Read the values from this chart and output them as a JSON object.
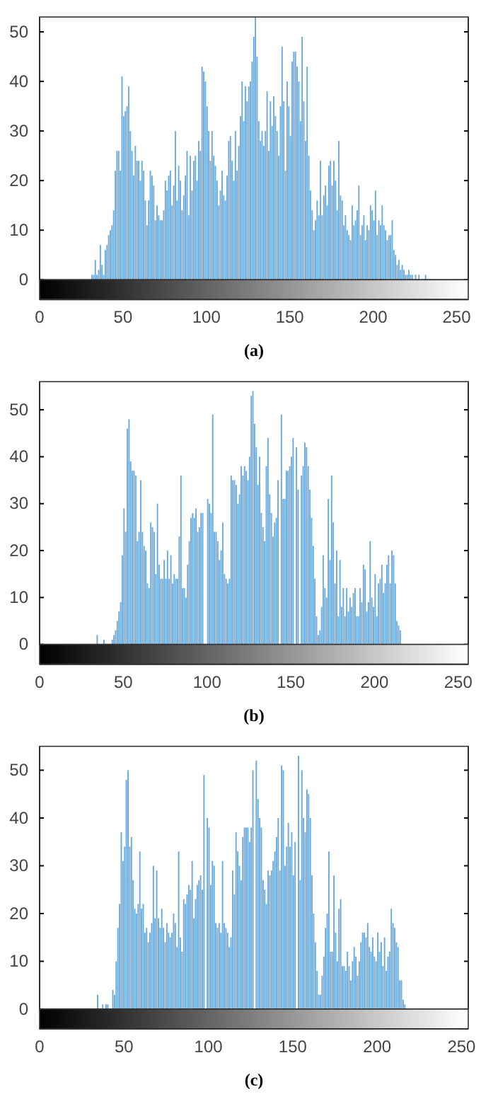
{
  "chart_data": [
    {
      "type": "histogram",
      "title": "(a)",
      "color": "#4d9ad6",
      "xlim": [
        0,
        257
      ],
      "xticks": [
        0,
        50,
        100,
        150,
        200,
        250
      ],
      "ylim": [
        0,
        53
      ],
      "yticks": [
        0,
        10,
        20,
        30,
        40,
        50
      ],
      "bins": [
        30,
        31,
        32,
        33,
        34,
        35,
        36,
        37,
        38,
        39,
        40,
        41,
        42,
        43,
        44,
        45,
        46,
        47,
        48,
        49,
        50,
        51,
        52,
        53,
        54,
        55,
        56,
        57,
        58,
        59,
        60,
        61,
        62,
        63,
        64,
        65,
        66,
        67,
        68,
        69,
        70,
        71,
        72,
        73,
        74,
        75,
        76,
        77,
        78,
        79,
        80,
        81,
        82,
        83,
        84,
        85,
        86,
        87,
        88,
        89,
        90,
        91,
        92,
        93,
        94,
        95,
        96,
        97,
        98,
        99,
        100,
        101,
        102,
        103,
        104,
        105,
        106,
        107,
        108,
        109,
        110,
        111,
        112,
        113,
        114,
        115,
        116,
        117,
        118,
        119,
        120,
        121,
        122,
        123,
        124,
        125,
        126,
        127,
        128,
        129,
        130,
        131,
        132,
        133,
        134,
        135,
        136,
        137,
        138,
        139,
        140,
        141,
        142,
        143,
        144,
        145,
        146,
        147,
        148,
        149,
        150,
        151,
        152,
        153,
        154,
        155,
        156,
        157,
        158,
        159,
        160,
        161,
        162,
        163,
        164,
        165,
        166,
        167,
        168,
        169,
        170,
        171,
        172,
        173,
        174,
        175,
        176,
        177,
        178,
        179,
        180,
        181,
        182,
        183,
        184,
        185,
        186,
        187,
        188,
        189,
        190,
        191,
        192,
        193,
        194,
        195,
        196,
        197,
        198,
        199,
        200,
        201,
        202,
        203,
        204,
        205,
        206,
        207,
        208,
        209,
        210,
        211,
        212,
        213,
        214,
        215,
        216,
        217,
        218,
        219,
        220,
        221,
        222,
        223,
        224,
        225,
        226,
        227,
        228,
        229,
        230,
        231,
        232,
        233,
        234
      ],
      "values": [
        0,
        1,
        1,
        4,
        1,
        2,
        7,
        3,
        1,
        6,
        7,
        9,
        10,
        11,
        14,
        22,
        26,
        26,
        22,
        41,
        33,
        34,
        35,
        39,
        30,
        26,
        21,
        27,
        24,
        24,
        20,
        24,
        22,
        16,
        11,
        16,
        22,
        21,
        19,
        12,
        15,
        13,
        12,
        12,
        14,
        20,
        18,
        21,
        22,
        15,
        19,
        30,
        16,
        23,
        20,
        14,
        17,
        21,
        26,
        13,
        25,
        18,
        24,
        25,
        20,
        28,
        26,
        43,
        42,
        40,
        35,
        30,
        24,
        30,
        25,
        23,
        20,
        15,
        18,
        22,
        17,
        16,
        21,
        28,
        29,
        24,
        20,
        30,
        22,
        27,
        33,
        40,
        32,
        39,
        36,
        39,
        40,
        44,
        49,
        53,
        45,
        32,
        28,
        30,
        27,
        30,
        38,
        26,
        36,
        31,
        37,
        33,
        30,
        25,
        35,
        47,
        36,
        22,
        40,
        35,
        29,
        44,
        46,
        46,
        43,
        40,
        32,
        49,
        36,
        28,
        43,
        25,
        18,
        14,
        10,
        12,
        16,
        13,
        24,
        13,
        17,
        19,
        15,
        23,
        24,
        19,
        24,
        20,
        14,
        28,
        17,
        16,
        11,
        13,
        10,
        9,
        8,
        15,
        11,
        12,
        14,
        19,
        9,
        11,
        13,
        8,
        11,
        10,
        15,
        14,
        12,
        18,
        9,
        12,
        11,
        15,
        11,
        10,
        8,
        9,
        9,
        12,
        6,
        5,
        3,
        4,
        2,
        3,
        2,
        1,
        1,
        2,
        1,
        1,
        0,
        1,
        0,
        1,
        0,
        0,
        0,
        1,
        0,
        0
      ]
    },
    {
      "type": "histogram",
      "title": "(b)",
      "color": "#4d9ad6",
      "xlim": [
        0,
        256
      ],
      "xticks": [
        0,
        50,
        100,
        150,
        200,
        250
      ],
      "ylim": [
        0,
        56
      ],
      "yticks": [
        0,
        10,
        20,
        30,
        40,
        50
      ],
      "bins": [
        30,
        31,
        32,
        33,
        34,
        35,
        36,
        37,
        38,
        39,
        40,
        41,
        42,
        43,
        44,
        45,
        46,
        47,
        48,
        49,
        50,
        51,
        52,
        53,
        54,
        55,
        56,
        57,
        58,
        59,
        60,
        61,
        62,
        63,
        64,
        65,
        66,
        67,
        68,
        69,
        70,
        71,
        72,
        73,
        74,
        75,
        76,
        77,
        78,
        79,
        80,
        81,
        82,
        83,
        84,
        85,
        86,
        87,
        88,
        89,
        90,
        91,
        92,
        93,
        94,
        95,
        96,
        97,
        98,
        99,
        100,
        101,
        102,
        103,
        104,
        105,
        106,
        107,
        108,
        109,
        110,
        111,
        112,
        113,
        114,
        115,
        116,
        117,
        118,
        119,
        120,
        121,
        122,
        123,
        124,
        125,
        126,
        127,
        128,
        129,
        130,
        131,
        132,
        133,
        134,
        135,
        136,
        137,
        138,
        139,
        140,
        141,
        142,
        143,
        144,
        145,
        146,
        147,
        148,
        149,
        150,
        151,
        152,
        153,
        154,
        155,
        156,
        157,
        158,
        159,
        160,
        161,
        162,
        163,
        164,
        165,
        166,
        167,
        168,
        169,
        170,
        171,
        172,
        173,
        174,
        175,
        176,
        177,
        178,
        179,
        180,
        181,
        182,
        183,
        184,
        185,
        186,
        187,
        188,
        189,
        190,
        191,
        192,
        193,
        194,
        195,
        196,
        197,
        198,
        199,
        200,
        201,
        202,
        203,
        204,
        205,
        206,
        207,
        208,
        209,
        210,
        211,
        212,
        213,
        214,
        215,
        216,
        217,
        218,
        219,
        220
      ],
      "values": [
        0,
        0,
        0,
        0,
        2,
        0,
        0,
        0,
        1,
        0,
        0,
        0,
        0,
        1,
        2,
        3,
        5,
        7,
        9,
        19,
        29,
        24,
        46,
        48,
        39,
        37,
        37,
        36,
        22,
        24,
        35,
        24,
        21,
        20,
        13,
        12,
        26,
        25,
        24,
        15,
        30,
        17,
        14,
        14,
        18,
        14,
        20,
        14,
        19,
        13,
        15,
        14,
        14,
        23,
        36,
        12,
        12,
        10,
        17,
        22,
        27,
        28,
        27,
        29,
        24,
        25,
        28,
        28,
        null,
        null,
        31,
        30,
        28,
        49,
        24,
        24,
        22,
        18,
        20,
        26,
        15,
        14,
        13,
        14,
        36,
        35,
        35,
        34,
        30,
        32,
        38,
        36,
        38,
        37,
        35,
        40,
        53,
        54,
        47,
        42,
        34,
        40,
        28,
        25,
        22,
        38,
        44,
        32,
        28,
        23,
        26,
        27,
        35,
        null,
        49,
        31,
        31,
        37,
        37,
        38,
        40,
        44,
        null,
        42,
        33,
        null,
        36,
        38,
        43,
        42,
        38,
        33,
        27,
        21,
        14,
        6,
        2,
        3,
        8,
        19,
        12,
        10,
        31,
        18,
        36,
        26,
        13,
        20,
        6,
        18,
        8,
        12,
        6,
        12,
        7,
        10,
        8,
        11,
        12,
        6,
        6,
        12,
        9,
        17,
        16,
        7,
        9,
        22,
        10,
        8,
        15,
        6,
        13,
        14,
        17,
        11,
        13,
        17,
        19,
        13,
        20,
        19,
        13,
        5,
        4,
        3,
        0,
        0,
        0,
        0
      ]
    },
    {
      "type": "histogram",
      "title": "(c)",
      "color": "#4d9ad6",
      "xlim": [
        0,
        254
      ],
      "xticks": [
        0,
        50,
        100,
        150,
        200,
        250
      ],
      "ylim": [
        0,
        55
      ],
      "yticks": [
        0,
        10,
        20,
        30,
        40,
        50
      ],
      "bins": [
        30,
        31,
        32,
        33,
        34,
        35,
        36,
        37,
        38,
        39,
        40,
        41,
        42,
        43,
        44,
        45,
        46,
        47,
        48,
        49,
        50,
        51,
        52,
        53,
        54,
        55,
        56,
        57,
        58,
        59,
        60,
        61,
        62,
        63,
        64,
        65,
        66,
        67,
        68,
        69,
        70,
        71,
        72,
        73,
        74,
        75,
        76,
        77,
        78,
        79,
        80,
        81,
        82,
        83,
        84,
        85,
        86,
        87,
        88,
        89,
        90,
        91,
        92,
        93,
        94,
        95,
        96,
        97,
        98,
        99,
        100,
        101,
        102,
        103,
        104,
        105,
        106,
        107,
        108,
        109,
        110,
        111,
        112,
        113,
        114,
        115,
        116,
        117,
        118,
        119,
        120,
        121,
        122,
        123,
        124,
        125,
        126,
        127,
        128,
        129,
        130,
        131,
        132,
        133,
        134,
        135,
        136,
        137,
        138,
        139,
        140,
        141,
        142,
        143,
        144,
        145,
        146,
        147,
        148,
        149,
        150,
        151,
        152,
        153,
        154,
        155,
        156,
        157,
        158,
        159,
        160,
        161,
        162,
        163,
        164,
        165,
        166,
        167,
        168,
        169,
        170,
        171,
        172,
        173,
        174,
        175,
        176,
        177,
        178,
        179,
        180,
        181,
        182,
        183,
        184,
        185,
        186,
        187,
        188,
        189,
        190,
        191,
        192,
        193,
        194,
        195,
        196,
        197,
        198,
        199,
        200,
        201,
        202,
        203,
        204,
        205,
        206,
        207,
        208,
        209,
        210,
        211,
        212,
        213,
        214,
        215,
        216,
        217,
        218,
        219,
        220
      ],
      "values": [
        0,
        0,
        0,
        0,
        3,
        0,
        0,
        1,
        0,
        1,
        1,
        0,
        0,
        4,
        3,
        10,
        17,
        22,
        37,
        31,
        34,
        48,
        50,
        34,
        36,
        27,
        21,
        20,
        22,
        33,
        21,
        22,
        16,
        17,
        14,
        16,
        18,
        30,
        19,
        29,
        19,
        17,
        21,
        17,
        14,
        18,
        16,
        15,
        16,
        20,
        18,
        13,
        33,
        15,
        12,
        23,
        22,
        24,
        26,
        25,
        31,
        19,
        23,
        26,
        27,
        28,
        25,
        49,
        null,
        40,
        38,
        26,
        31,
        30,
        18,
        17,
        18,
        16,
        31,
        18,
        17,
        16,
        13,
        15,
        29,
        24,
        37,
        33,
        30,
        27,
        36,
        38,
        38,
        38,
        35,
        38,
        50,
        null,
        52,
        44,
        40,
        38,
        27,
        25,
        22,
        29,
        28,
        29,
        31,
        33,
        36,
        40,
        29,
        51,
        50,
        30,
        34,
        39,
        34,
        37,
        28,
        35,
        null,
        53,
        27,
        50,
        40,
        37,
        46,
        45,
        40,
        28,
        20,
        14,
        8,
        3,
        3,
        7,
        11,
        17,
        20,
        33,
        12,
        12,
        28,
        16,
        10,
        21,
        23,
        9,
        9,
        8,
        12,
        9,
        6,
        10,
        13,
        11,
        7,
        10,
        14,
        16,
        16,
        15,
        18,
        13,
        12,
        15,
        11,
        10,
        16,
        12,
        14,
        9,
        15,
        8,
        11,
        12,
        21,
        18,
        17,
        14,
        13,
        6,
        6,
        2,
        1,
        0,
        0,
        0
      ]
    }
  ]
}
